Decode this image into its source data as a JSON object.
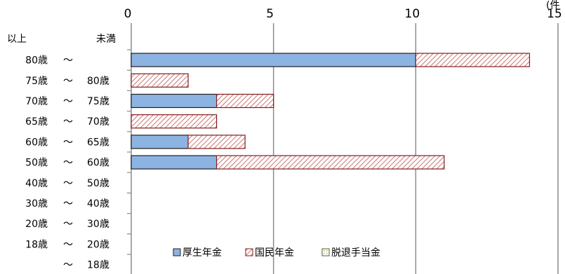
{
  "corner_text": "(件",
  "headers": {
    "lower": "以上",
    "upper": "未満"
  },
  "chart_data": {
    "type": "bar",
    "orientation": "horizontal",
    "stacked": true,
    "xlim": [
      0,
      15
    ],
    "xticks": [
      0,
      5,
      10,
      15
    ],
    "grid": true,
    "legend_position": "bottom-right-inside",
    "categories": [
      {
        "lower": "80歳",
        "sep": "〜",
        "upper": ""
      },
      {
        "lower": "75歳",
        "sep": "〜",
        "upper": "80歳"
      },
      {
        "lower": "70歳",
        "sep": "〜",
        "upper": "75歳"
      },
      {
        "lower": "65歳",
        "sep": "〜",
        "upper": "70歳"
      },
      {
        "lower": "60歳",
        "sep": "〜",
        "upper": "65歳"
      },
      {
        "lower": "50歳",
        "sep": "〜",
        "upper": "60歳"
      },
      {
        "lower": "40歳",
        "sep": "〜",
        "upper": "50歳"
      },
      {
        "lower": "30歳",
        "sep": "〜",
        "upper": "40歳"
      },
      {
        "lower": "20歳",
        "sep": "〜",
        "upper": "30歳"
      },
      {
        "lower": "18歳",
        "sep": "〜",
        "upper": "20歳"
      },
      {
        "lower": "",
        "sep": "〜",
        "upper": "18歳"
      }
    ],
    "series": [
      {
        "name": "厚生年金",
        "color": "#8db3e2",
        "pattern": "solid",
        "values": [
          10,
          0,
          3,
          0,
          2,
          3,
          0,
          0,
          0,
          0,
          0
        ]
      },
      {
        "name": "国民年金",
        "color": "#c0504d",
        "pattern": "hatched",
        "values": [
          4,
          2,
          2,
          3,
          2,
          8,
          0,
          0,
          0,
          0,
          0
        ]
      },
      {
        "name": "脱退手当金",
        "color": "#9bbb59",
        "pattern": "dotted",
        "values": [
          0,
          0,
          0,
          0,
          0,
          0,
          0,
          0,
          0,
          0,
          0
        ]
      }
    ]
  }
}
